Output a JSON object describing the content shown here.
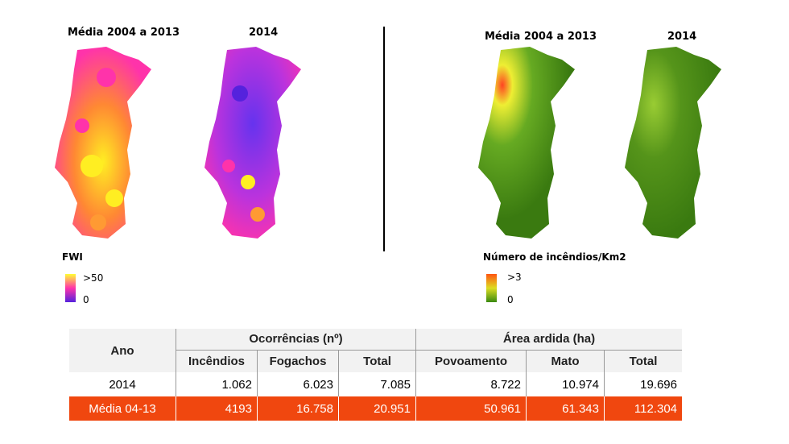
{
  "fwi_panel": {
    "title_avg": "Média 2004 a 2013",
    "title_year": "2014",
    "legend_title": "FWI",
    "legend_max": ">50",
    "legend_min": "0",
    "colors": {
      "high": "#ffff33",
      "mid": "#ff33aa",
      "low": "#5522dd"
    }
  },
  "fires_panel": {
    "title_avg": "Média 2004 a 2013",
    "title_year": "2014",
    "legend_title": "Número de incêndios/Km2",
    "legend_max": ">3",
    "legend_min": "0",
    "colors": {
      "high": "#ff5511",
      "mid": "#dddd22",
      "low": "#3a8a10"
    }
  },
  "table": {
    "col_ano": "Ano",
    "group_ocorrencias": "Ocorrências (nº)",
    "group_area": "Área ardida (ha)",
    "subheaders": [
      "Incêndios",
      "Fogachos",
      "Total",
      "Povoamento",
      "Mato",
      "Total"
    ],
    "rows": [
      {
        "ano": "2014",
        "values": [
          "1.062",
          "6.023",
          "7.085",
          "8.722",
          "10.974",
          "19.696"
        ]
      },
      {
        "ano": "Média 04-13",
        "values": [
          "4193",
          "16.758",
          "20.951",
          "50.961",
          "61.343",
          "112.304"
        ]
      }
    ],
    "highlight_color": "#f0470f"
  }
}
